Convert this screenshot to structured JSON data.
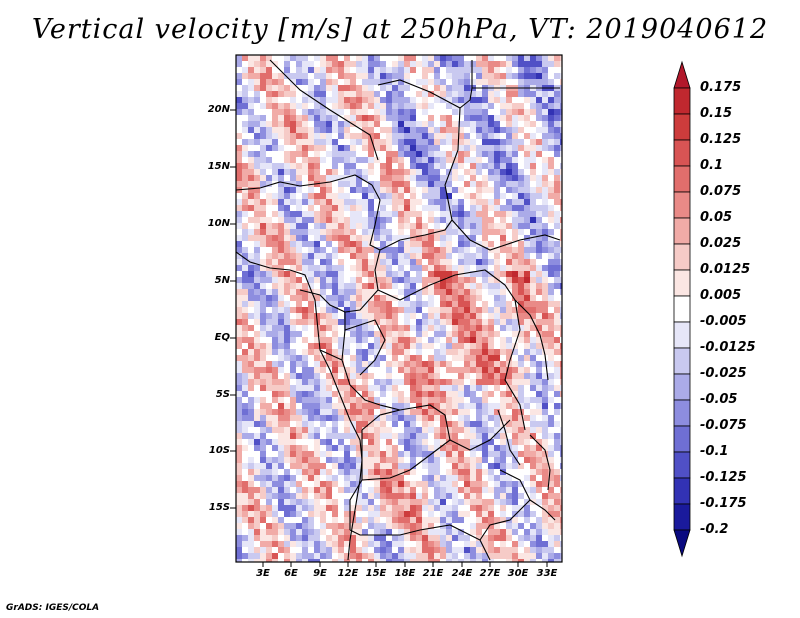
{
  "title": "Vertical velocity [m/s] at 250hPa, VT: 2019040612",
  "footer": "GrADS: IGES/COLA",
  "map": {
    "variable": "Vertical velocity",
    "units": "m/s",
    "level": "250hPa",
    "valid_time": "2019040612",
    "lat_labels": [
      "20N",
      "15N",
      "10N",
      "5N",
      "EQ",
      "5S",
      "10S",
      "15S"
    ],
    "lon_labels": [
      "3E",
      "6E",
      "9E",
      "12E",
      "15E",
      "18E",
      "21E",
      "24E",
      "27E",
      "30E",
      "33E"
    ]
  },
  "colorbar": {
    "labels": [
      "0.175",
      "0.15",
      "0.125",
      "0.1",
      "0.075",
      "0.05",
      "0.025",
      "0.0125",
      "0.005",
      "-0.005",
      "-0.0125",
      "-0.025",
      "-0.05",
      "-0.075",
      "-0.1",
      "-0.125",
      "-0.175",
      "-0.2"
    ],
    "colors": [
      "#b2182b",
      "#c0282f",
      "#cd3c3c",
      "#d85454",
      "#e16e6c",
      "#e98a87",
      "#f1aba7",
      "#f6cbc7",
      "#fbe6e3",
      "#ffffff",
      "#e6e6f8",
      "#c9c9f0",
      "#ababe8",
      "#8d8ddf",
      "#6f6fd4",
      "#5050c6",
      "#3232b4",
      "#1a1a9c",
      "#0a0a80"
    ]
  }
}
